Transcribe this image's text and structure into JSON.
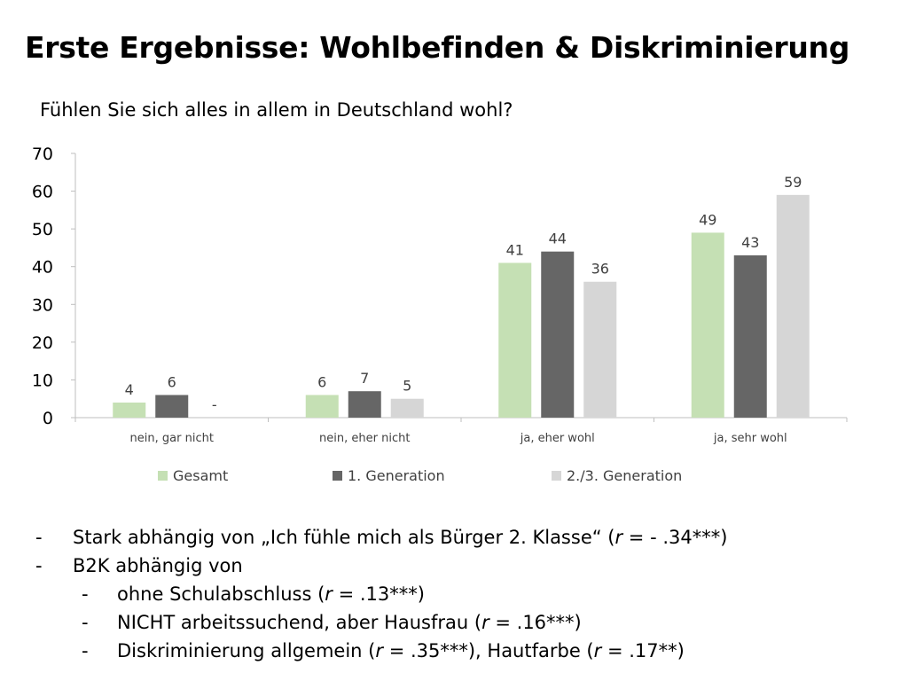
{
  "title": "Erste Ergebnisse: Wohlbefinden & Diskriminierung",
  "colors": {
    "gesamt": "#c5e0b4",
    "gen1": "#666666",
    "gen23": "#d6d6d6",
    "axis": "#bfbfbf"
  },
  "chart_data": {
    "type": "bar",
    "title": "Fühlen Sie sich alles in allem in Deutschland wohl?",
    "categories": [
      "nein, gar nicht",
      "nein, eher nicht",
      "ja, eher wohl",
      "ja, sehr wohl"
    ],
    "series": [
      {
        "name": "Gesamt",
        "values": [
          4,
          6,
          41,
          49
        ],
        "labels": [
          "4",
          "6",
          "41",
          "49"
        ]
      },
      {
        "name": "1. Generation",
        "values": [
          6,
          7,
          44,
          43
        ],
        "labels": [
          "6",
          "7",
          "44",
          "43"
        ]
      },
      {
        "name": "2./3. Generation",
        "values": [
          0,
          5,
          36,
          59
        ],
        "labels": [
          "-",
          "5",
          "36",
          "59"
        ]
      }
    ],
    "ylim": [
      0,
      70
    ],
    "yticks": [
      0,
      10,
      20,
      30,
      40,
      50,
      60,
      70
    ],
    "grid": false,
    "legend_position": "bottom"
  },
  "bullets": [
    {
      "level": 1,
      "dash": "-",
      "segments": [
        {
          "text": "Stark abhängig von „Ich fühle mich als Bürger 2. Klasse“ (",
          "italic": false
        },
        {
          "text": "r",
          "italic": true
        },
        {
          "text": " = - .34***)",
          "italic": false
        }
      ]
    },
    {
      "level": 1,
      "dash": "-",
      "segments": [
        {
          "text": "B2K abhängig von",
          "italic": false
        }
      ]
    },
    {
      "level": 2,
      "dash": "-",
      "segments": [
        {
          "text": "ohne Schulabschluss (",
          "italic": false
        },
        {
          "text": "r",
          "italic": true
        },
        {
          "text": " = .13***)",
          "italic": false
        }
      ]
    },
    {
      "level": 2,
      "dash": "-",
      "segments": [
        {
          "text": "NICHT arbeitssuchend, aber Hausfrau (",
          "italic": false
        },
        {
          "text": "r",
          "italic": true
        },
        {
          "text": " = .16***)",
          "italic": false
        }
      ]
    },
    {
      "level": 2,
      "dash": "-",
      "segments": [
        {
          "text": "Diskriminierung allgemein (",
          "italic": false
        },
        {
          "text": "r",
          "italic": true
        },
        {
          "text": " = .35***), Hautfarbe (",
          "italic": false
        },
        {
          "text": "r",
          "italic": true
        },
        {
          "text": " = .17**)",
          "italic": false
        }
      ]
    }
  ]
}
